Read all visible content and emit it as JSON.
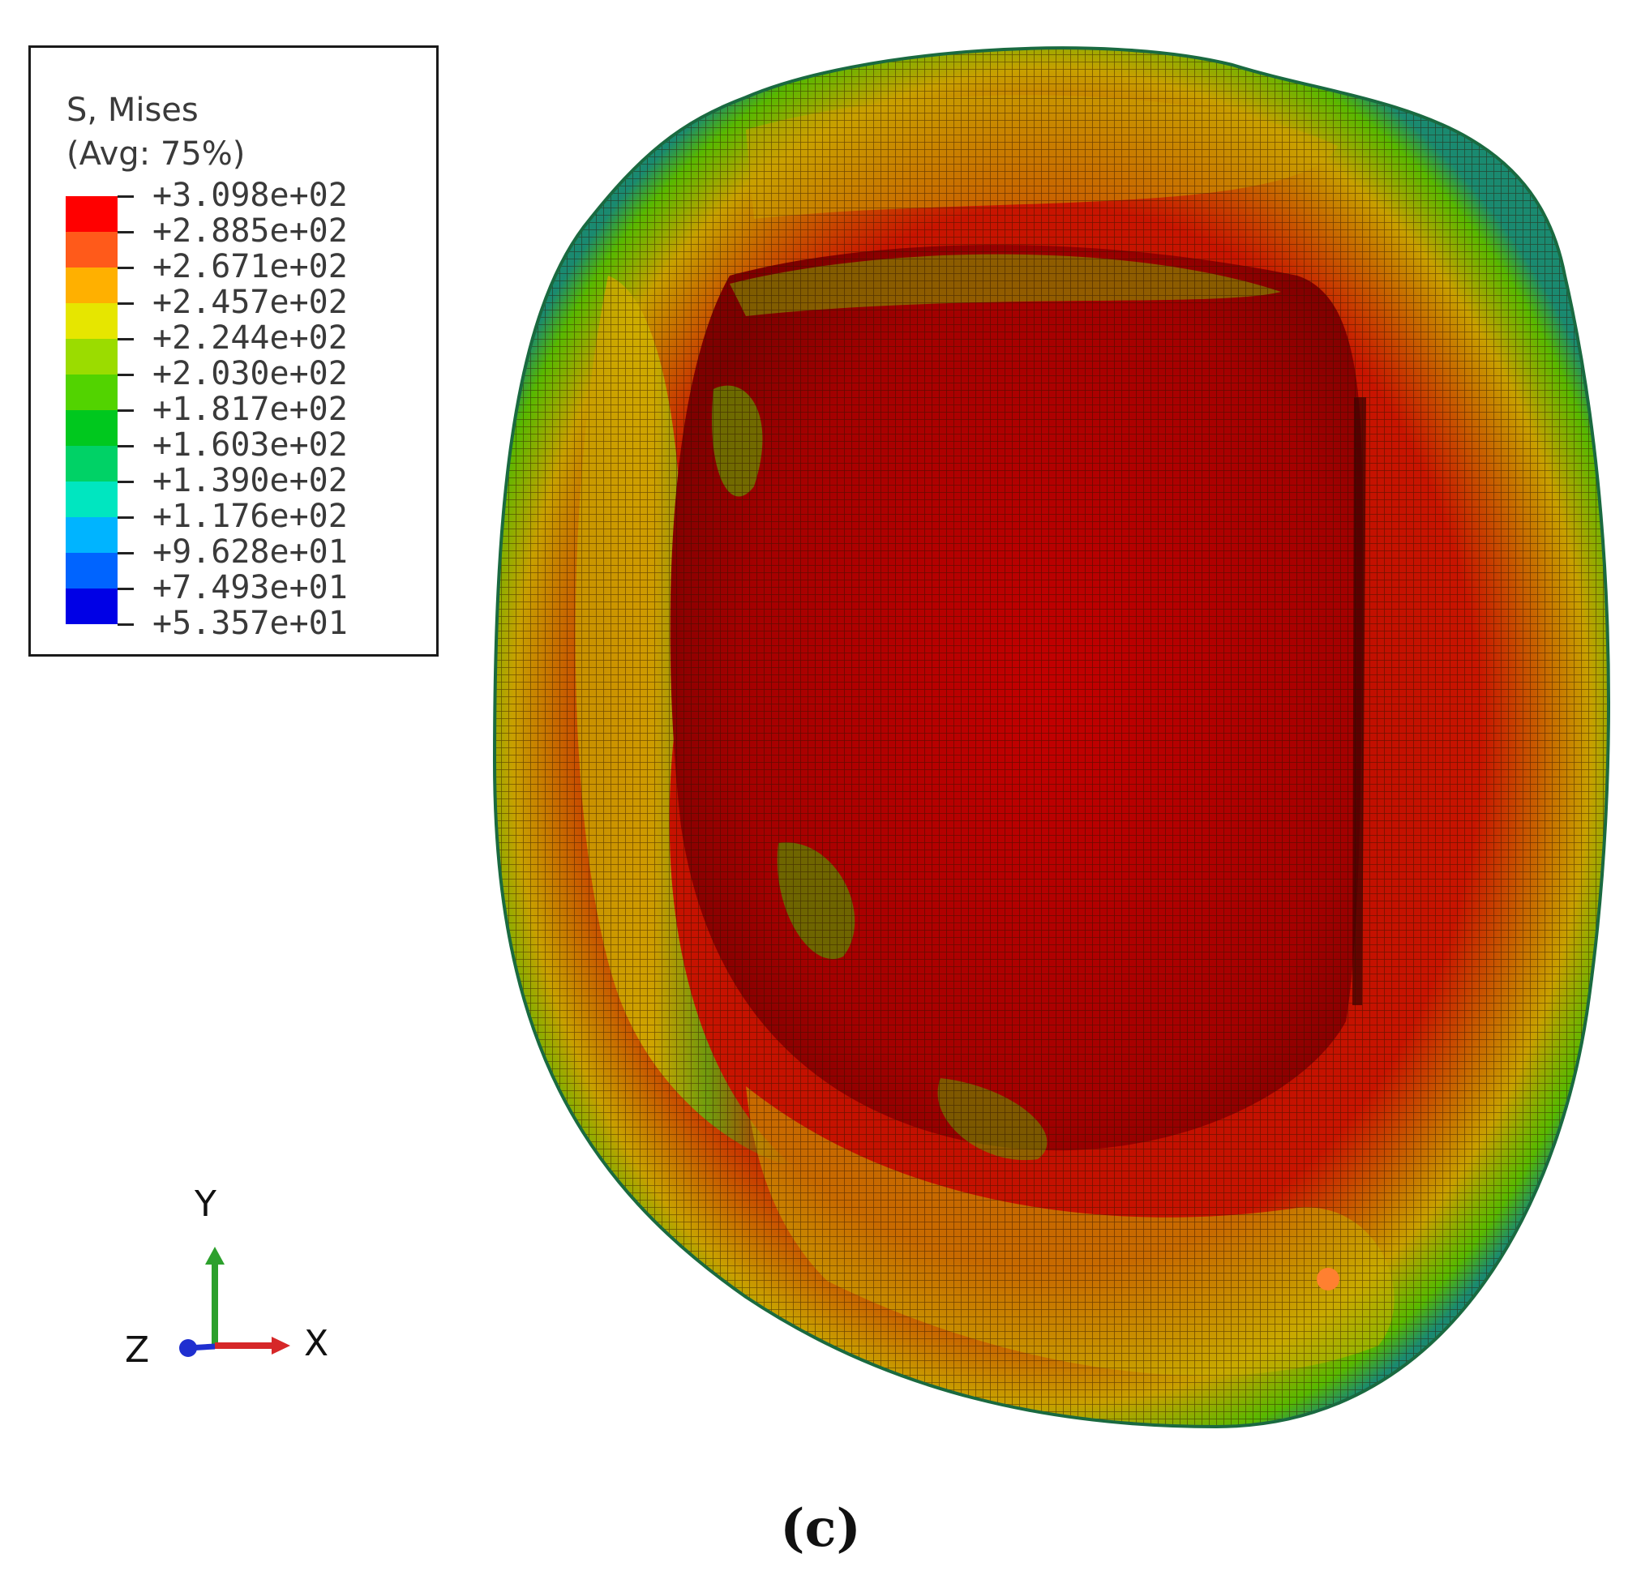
{
  "legend": {
    "variable": "S, Mises",
    "averaging": "(Avg: 75%)",
    "values": [
      "+3.098e+02",
      "+2.885e+02",
      "+2.671e+02",
      "+2.457e+02",
      "+2.244e+02",
      "+2.030e+02",
      "+1.817e+02",
      "+1.603e+02",
      "+1.390e+02",
      "+1.176e+02",
      "+9.628e+01",
      "+7.493e+01",
      "+5.357e+01"
    ],
    "colors": [
      "#ff0000",
      "#ff5a1a",
      "#ffb000",
      "#e6e600",
      "#9bdc00",
      "#52d300",
      "#00c81e",
      "#00d266",
      "#00e6c0",
      "#00b4ff",
      "#0064ff",
      "#0000e6"
    ]
  },
  "triad": {
    "x": "X",
    "y": "Y",
    "z": "Z"
  },
  "caption": "(c)"
}
